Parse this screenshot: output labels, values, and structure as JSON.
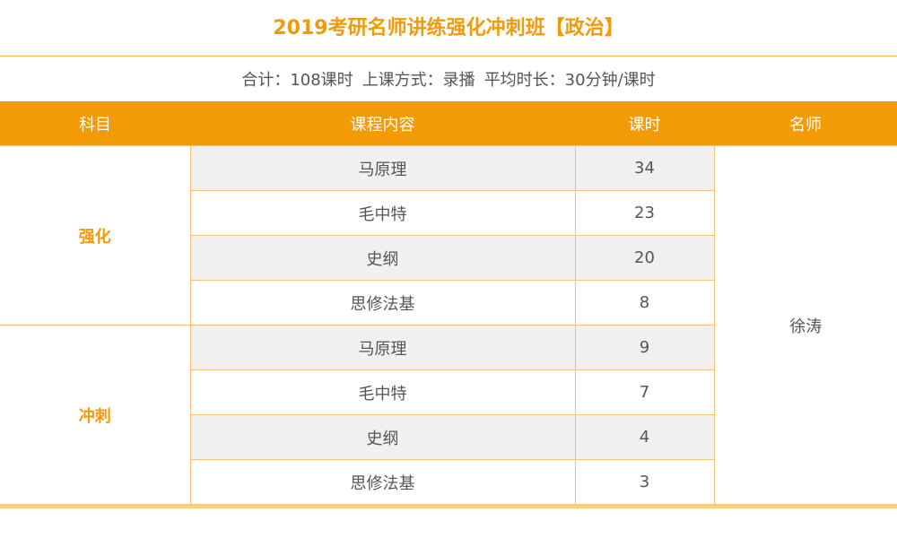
{
  "title": "2019考研名师讲练强化冲刺班【政治】",
  "summary": {
    "total": "合计：108课时",
    "mode": "上课方式：录播",
    "duration": "平均时长：30分钟/课时"
  },
  "table": {
    "headers": {
      "subject": "科目",
      "content": "课程内容",
      "hours": "课时",
      "teacher": "名师"
    },
    "teacher": "徐涛",
    "groups": [
      {
        "subject": "强化",
        "rows": [
          {
            "course": "马原理",
            "hours": "34"
          },
          {
            "course": "毛中特",
            "hours": "23"
          },
          {
            "course": "史纲",
            "hours": "20"
          },
          {
            "course": "思修法基",
            "hours": "8"
          }
        ]
      },
      {
        "subject": "冲刺",
        "rows": [
          {
            "course": "马原理",
            "hours": "9"
          },
          {
            "course": "毛中特",
            "hours": "7"
          },
          {
            "course": "史纲",
            "hours": "4"
          },
          {
            "course": "思修法基",
            "hours": "3"
          }
        ]
      }
    ]
  },
  "colors": {
    "accent": "#f39a07",
    "row_shade": "#f0f0f0",
    "border": "#f0c27a"
  }
}
